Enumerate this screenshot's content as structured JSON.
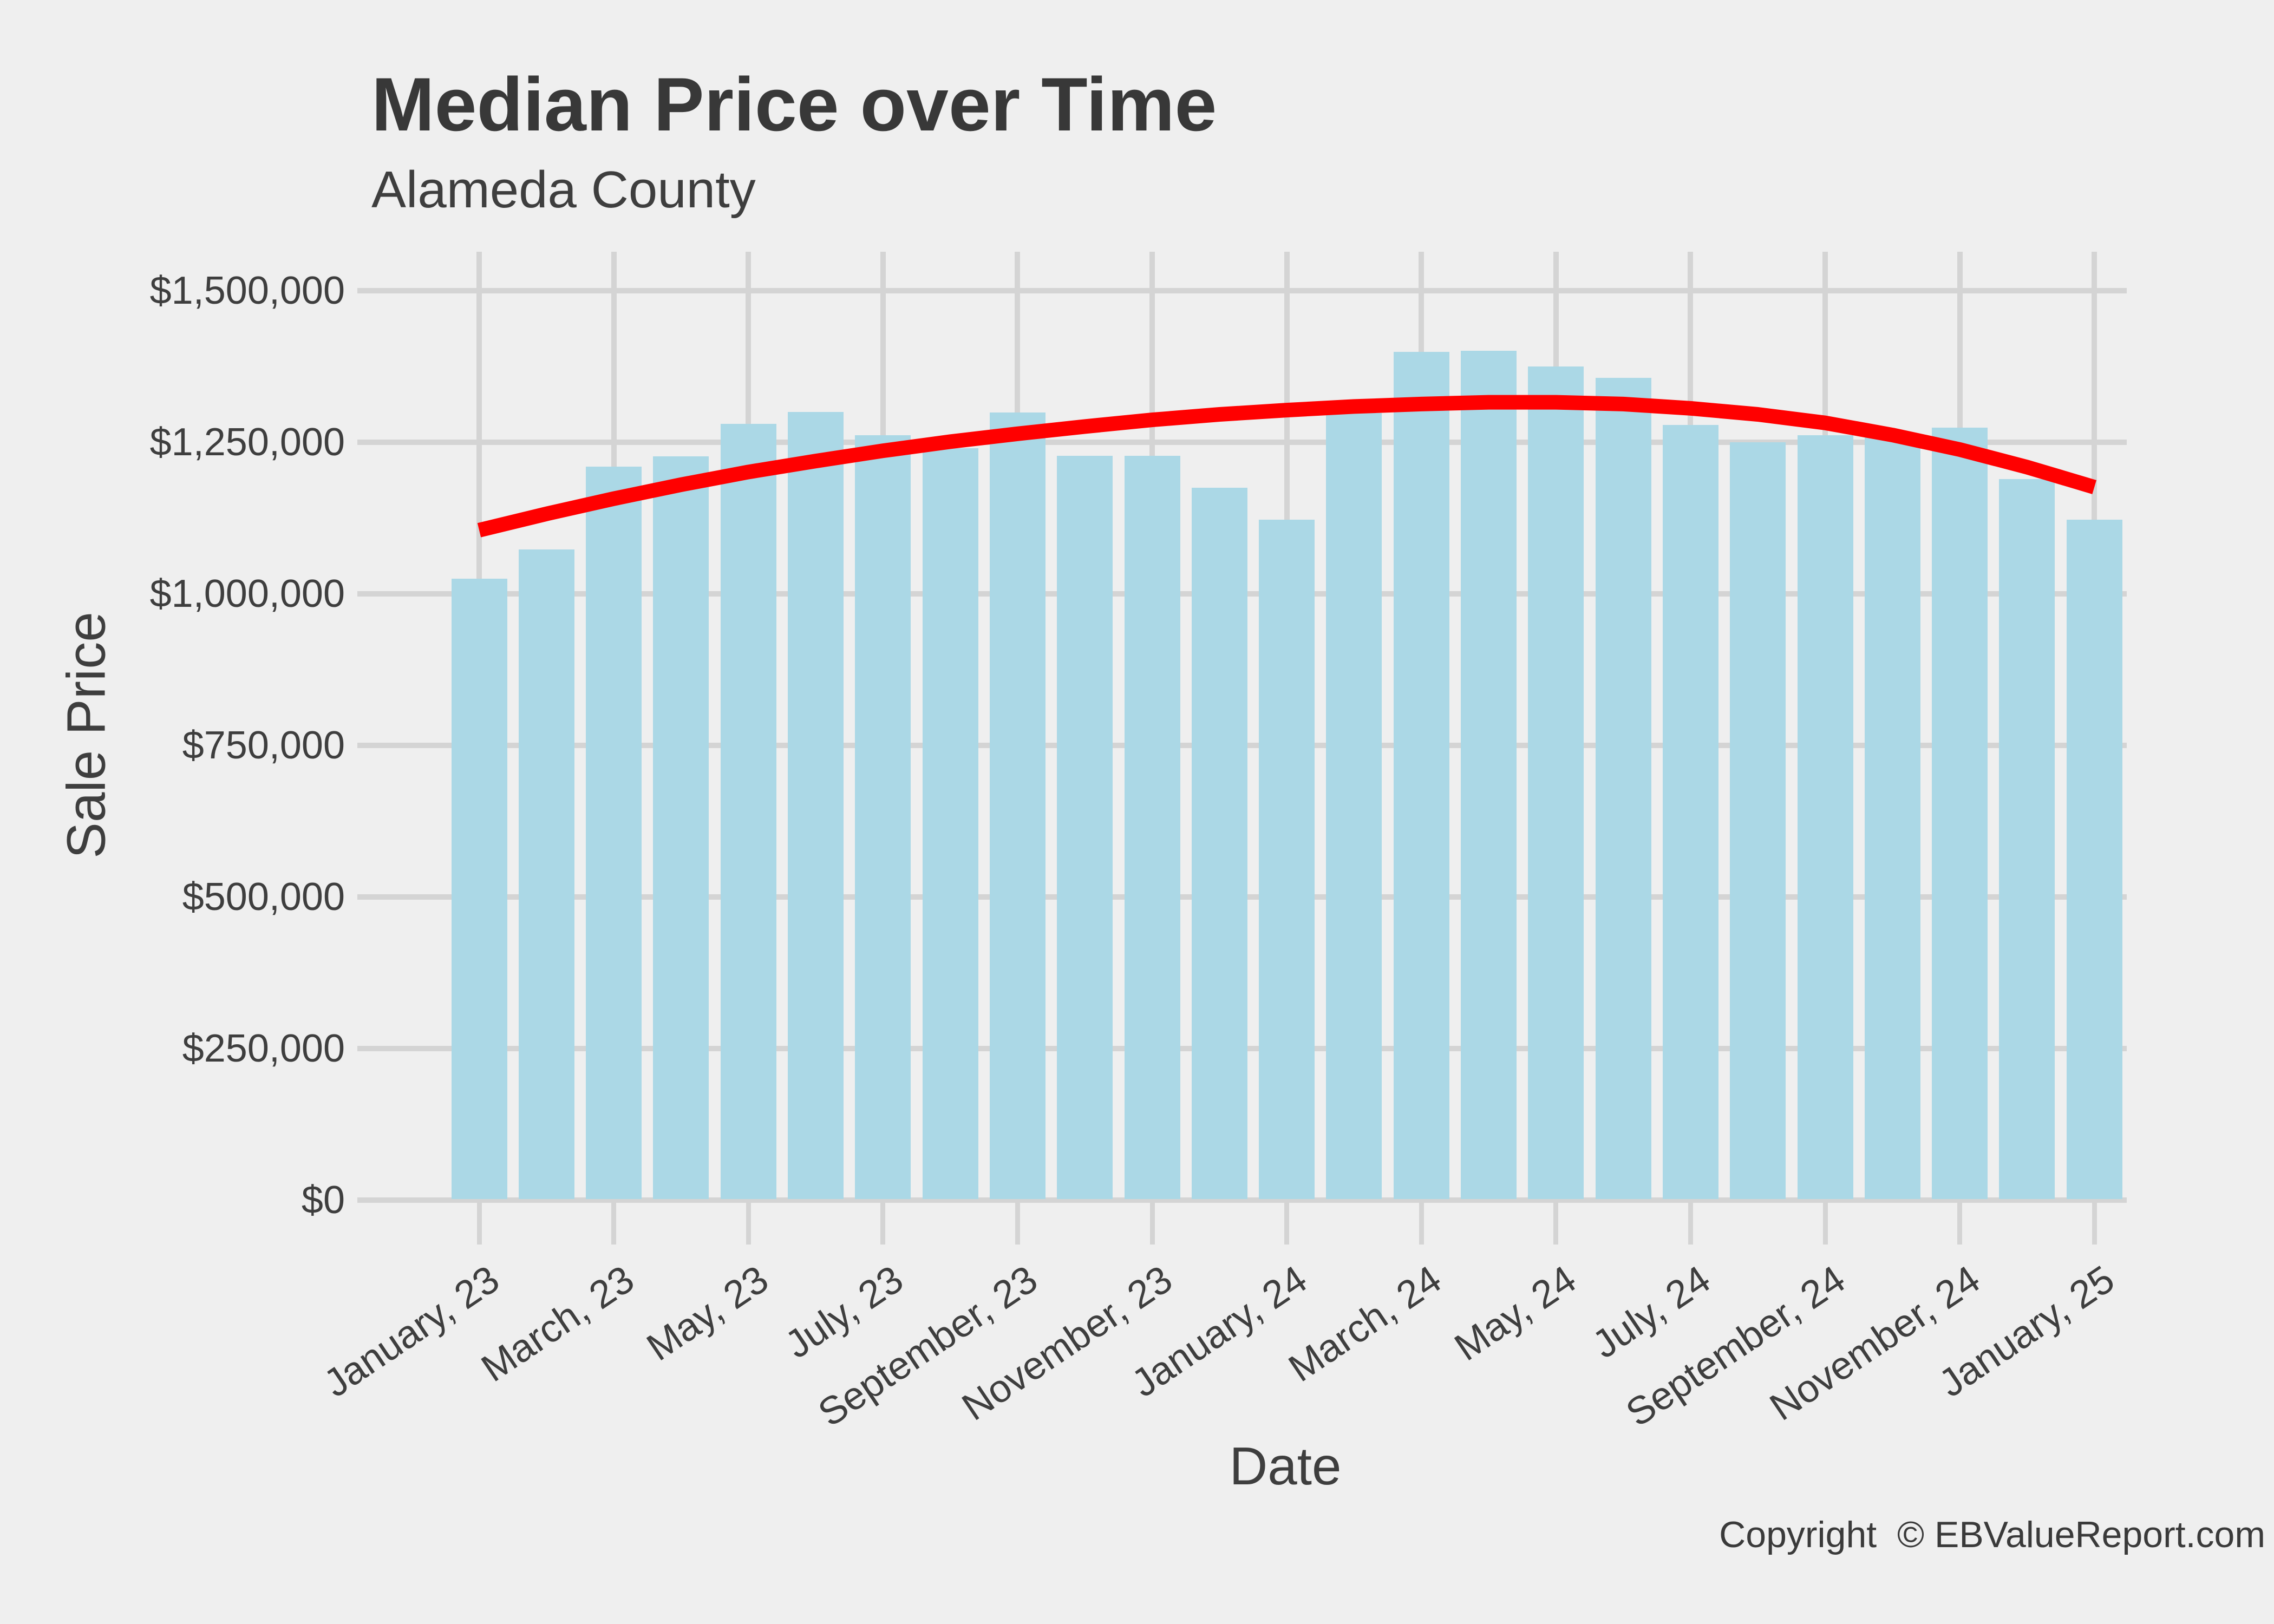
{
  "title": "Median Price over Time",
  "subtitle": "Alameda County",
  "y_axis": {
    "label": "Sale Price",
    "ticks": [
      {
        "value": 0,
        "label": "$0"
      },
      {
        "value": 250000,
        "label": "$250,000"
      },
      {
        "value": 500000,
        "label": "$500,000"
      },
      {
        "value": 750000,
        "label": "$750,000"
      },
      {
        "value": 1000000,
        "label": "$1,000,000"
      },
      {
        "value": 1250000,
        "label": "$1,250,000"
      },
      {
        "value": 1500000,
        "label": "$1,500,000"
      }
    ]
  },
  "x_axis": {
    "label": "Date",
    "tick_labels": [
      "January, 23",
      "March, 23",
      "May, 23",
      "July, 23",
      "September, 23",
      "November, 23",
      "January, 24",
      "March, 24",
      "May, 24",
      "July, 24",
      "September, 24",
      "November, 24",
      "January, 25"
    ]
  },
  "footer": {
    "copyright": "Copyright  © EBValueReport.com"
  },
  "chart_data": {
    "type": "bar",
    "title": "Median Price over Time",
    "subtitle": "Alameda County",
    "xlabel": "Date",
    "ylabel": "Sale Price",
    "ylim": [
      0,
      1500000
    ],
    "grid": "on",
    "legend": "none",
    "categories": [
      "January, 23",
      "February, 23",
      "March, 23",
      "April, 23",
      "May, 23",
      "June, 23",
      "July, 23",
      "August, 23",
      "September, 23",
      "October, 23",
      "November, 23",
      "December, 23",
      "January, 24",
      "February, 24",
      "March, 24",
      "April, 24",
      "May, 24",
      "June, 24",
      "July, 24",
      "August, 24",
      "September, 24",
      "October, 24",
      "November, 24",
      "December, 24",
      "January, 25"
    ],
    "labeled_tick_indices": [
      0,
      2,
      4,
      6,
      8,
      10,
      12,
      14,
      16,
      18,
      20,
      22,
      24
    ],
    "series": [
      {
        "name": "Median Sale Price",
        "type": "bar",
        "color": "#ABD8E6",
        "values": [
          1025000,
          1073000,
          1210000,
          1227000,
          1280000,
          1300000,
          1262000,
          1240000,
          1299000,
          1228000,
          1228000,
          1175000,
          1122000,
          1298000,
          1399000,
          1401000,
          1375000,
          1356000,
          1279000,
          1250000,
          1262000,
          1261000,
          1274000,
          1189000,
          1122000
        ]
      },
      {
        "name": "Trend Line",
        "type": "line",
        "color": "#FF0000",
        "values": [
          1105000,
          1132000,
          1157000,
          1180000,
          1201000,
          1219000,
          1236000,
          1251000,
          1264000,
          1276000,
          1287000,
          1296000,
          1303000,
          1309000,
          1313000,
          1316000,
          1316000,
          1313000,
          1306000,
          1296000,
          1282000,
          1262000,
          1238000,
          1209000,
          1176000
        ]
      }
    ],
    "colors": {
      "background": "#EFEFEF",
      "grid": "#D4D4D4",
      "bar": "#ABD8E6",
      "trend": "#FF0000",
      "text": "#3E3E3E"
    }
  }
}
